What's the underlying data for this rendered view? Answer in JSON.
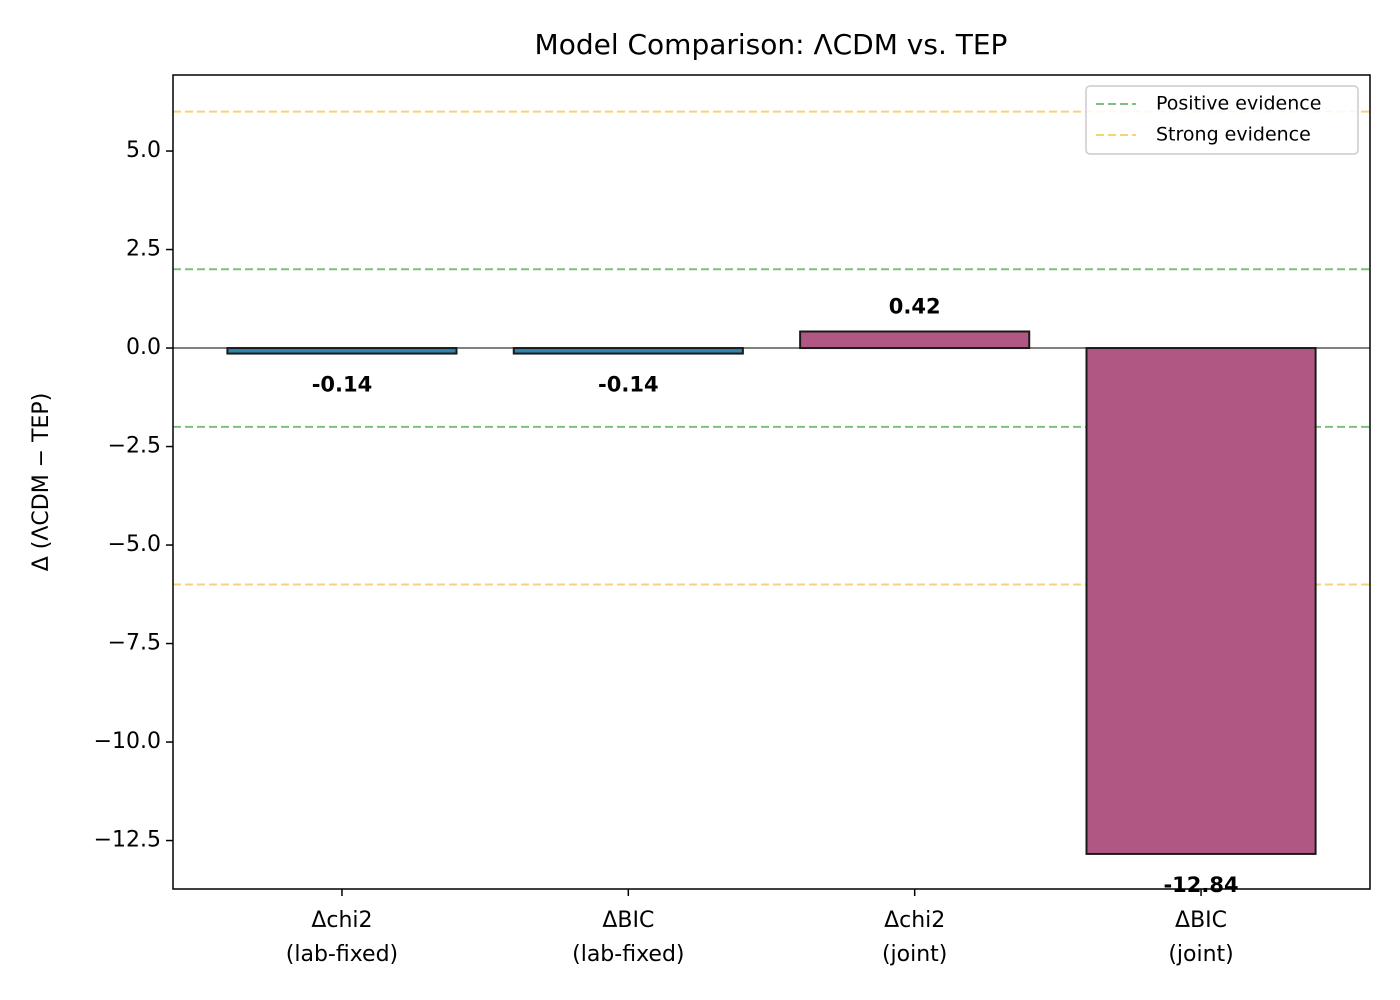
{
  "chart_data": {
    "type": "bar",
    "title": "Model Comparison: ΛCDM vs. TEP",
    "y_label": "Δ (ΛCDM − TEP)",
    "categories": [
      "Δchi2\n(lab-fixed)",
      "ΔBIC\n(lab-fixed)",
      "Δchi2\n(joint)",
      "ΔBIC\n(joint)"
    ],
    "values": [
      -0.14,
      -0.14,
      0.42,
      -12.84
    ],
    "colors": [
      "#2e86ab",
      "#2e86ab",
      "#b05883",
      "#b05883"
    ],
    "ylim": [
      -13.73,
      6.93
    ],
    "yticks": [
      {
        "value": -12.5,
        "label": "−12.5"
      },
      {
        "value": -10,
        "label": "−10.0"
      },
      {
        "value": -7.5,
        "label": "−7.5"
      },
      {
        "value": -5,
        "label": "−5.0"
      },
      {
        "value": -2.5,
        "label": "−2.5"
      },
      {
        "value": 0,
        "label": "0.0"
      },
      {
        "value": 2.5,
        "label": "2.5"
      },
      {
        "value": 5,
        "label": "5.0"
      }
    ],
    "reference_lines": [
      {
        "name": "Positive evidence",
        "color": "#7fc07f",
        "values": [
          2,
          -2
        ]
      },
      {
        "name": "Strong evidence",
        "color": "#f7d27a",
        "values": [
          6,
          -6
        ]
      }
    ],
    "legend": "upper right",
    "grid": false
  }
}
